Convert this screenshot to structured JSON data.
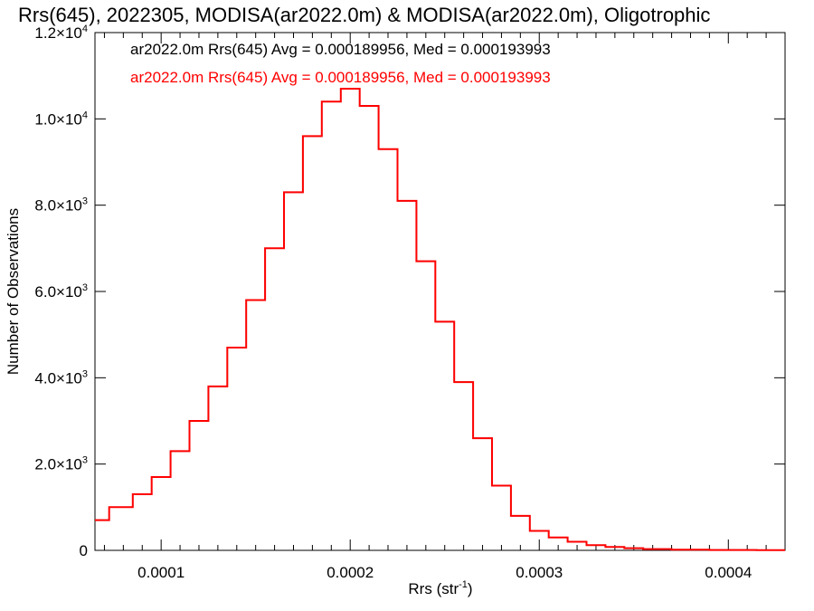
{
  "chart_data": {
    "type": "line",
    "title": "Rrs(645), 2022305, MODISA(ar2022.0m) & MODISA(ar2022.0m), Oligotrophic",
    "xlabel": "Rrs (str",
    "xlabel_sup": "-1",
    "xlabel_end": ")",
    "ylabel": "Number of Observations",
    "xlim": [
      6.5e-05,
      0.00043
    ],
    "ylim": [
      0,
      12000
    ],
    "x_ticks": [
      {
        "value": 0.0001,
        "label": "0.0001"
      },
      {
        "value": 0.0002,
        "label": "0.0002"
      },
      {
        "value": 0.0003,
        "label": "0.0003"
      },
      {
        "value": 0.0004,
        "label": "0.0004"
      }
    ],
    "y_ticks": [
      {
        "value": 0,
        "mant": "0",
        "exp": ""
      },
      {
        "value": 2000,
        "mant": "2.0×10",
        "exp": "3"
      },
      {
        "value": 4000,
        "mant": "4.0×10",
        "exp": "3"
      },
      {
        "value": 6000,
        "mant": "6.0×10",
        "exp": "3"
      },
      {
        "value": 8000,
        "mant": "8.0×10",
        "exp": "3"
      },
      {
        "value": 10000,
        "mant": "1.0×10",
        "exp": "4"
      },
      {
        "value": 12000,
        "mant": "1.2×10",
        "exp": "4"
      }
    ],
    "series": [
      {
        "name": "ar2022.0m Rrs(645) Avg = 0.000189956, Med = 0.000193993",
        "color": "#000000",
        "x": [
          6.5e-05,
          8e-05,
          9e-05,
          0.0001,
          0.00011,
          0.00012,
          0.00013,
          0.00014,
          0.00015,
          0.00016,
          0.00017,
          0.00018,
          0.00019,
          0.0002,
          0.00021,
          0.00022,
          0.00023,
          0.00024,
          0.00025,
          0.00026,
          0.00027,
          0.00028,
          0.00029,
          0.0003,
          0.00031,
          0.00032,
          0.00033,
          0.00034,
          0.00035,
          0.00036,
          0.00038,
          0.0004,
          0.00043
        ],
        "values": [
          700,
          1000,
          1300,
          1700,
          2300,
          3000,
          3800,
          4700,
          5800,
          7000,
          8300,
          9600,
          10400,
          10700,
          10300,
          9300,
          8100,
          6700,
          5300,
          3900,
          2600,
          1500,
          800,
          450,
          300,
          200,
          120,
          80,
          50,
          30,
          15,
          8,
          5
        ]
      },
      {
        "name": "ar2022.0m Rrs(645) Avg = 0.000189956, Med = 0.000193993",
        "color": "#ff0000",
        "x": [
          6.5e-05,
          8e-05,
          9e-05,
          0.0001,
          0.00011,
          0.00012,
          0.00013,
          0.00014,
          0.00015,
          0.00016,
          0.00017,
          0.00018,
          0.00019,
          0.0002,
          0.00021,
          0.00022,
          0.00023,
          0.00024,
          0.00025,
          0.00026,
          0.00027,
          0.00028,
          0.00029,
          0.0003,
          0.00031,
          0.00032,
          0.00033,
          0.00034,
          0.00035,
          0.00036,
          0.00038,
          0.0004,
          0.00043
        ],
        "values": [
          700,
          1000,
          1300,
          1700,
          2300,
          3000,
          3800,
          4700,
          5800,
          7000,
          8300,
          9600,
          10400,
          10700,
          10300,
          9300,
          8100,
          6700,
          5300,
          3900,
          2600,
          1500,
          800,
          450,
          300,
          200,
          120,
          80,
          50,
          30,
          15,
          8,
          5
        ]
      }
    ],
    "grid": false,
    "legend_position": "top-left"
  }
}
